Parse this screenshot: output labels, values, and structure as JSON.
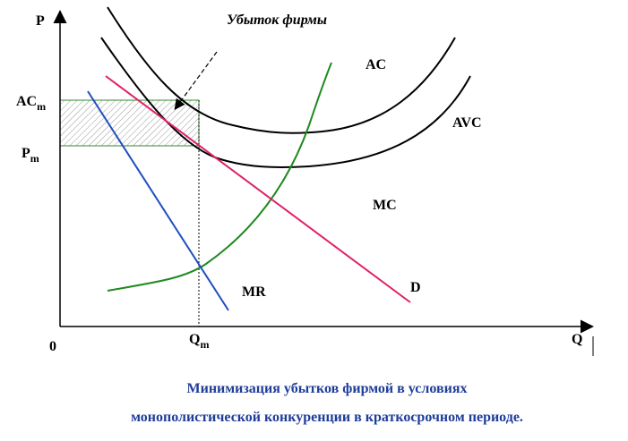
{
  "axes": {
    "y_label": "P",
    "x_label": "Q",
    "origin": "0"
  },
  "levels": {
    "ac_m": {
      "main": "AC",
      "sub": "m"
    },
    "p_m": {
      "main": "P",
      "sub": "m"
    },
    "q_m": {
      "main": "Q",
      "sub": "m"
    }
  },
  "curves": {
    "ac": "AC",
    "avc": "AVC",
    "mc": "MC",
    "d": "D",
    "mr": "MR"
  },
  "annotation": "Убыток фирмы",
  "caption": {
    "line1": "Минимизация убытков фирмой в условиях",
    "line2": "монополистической конкуренции в краткосрочном периоде."
  }
}
